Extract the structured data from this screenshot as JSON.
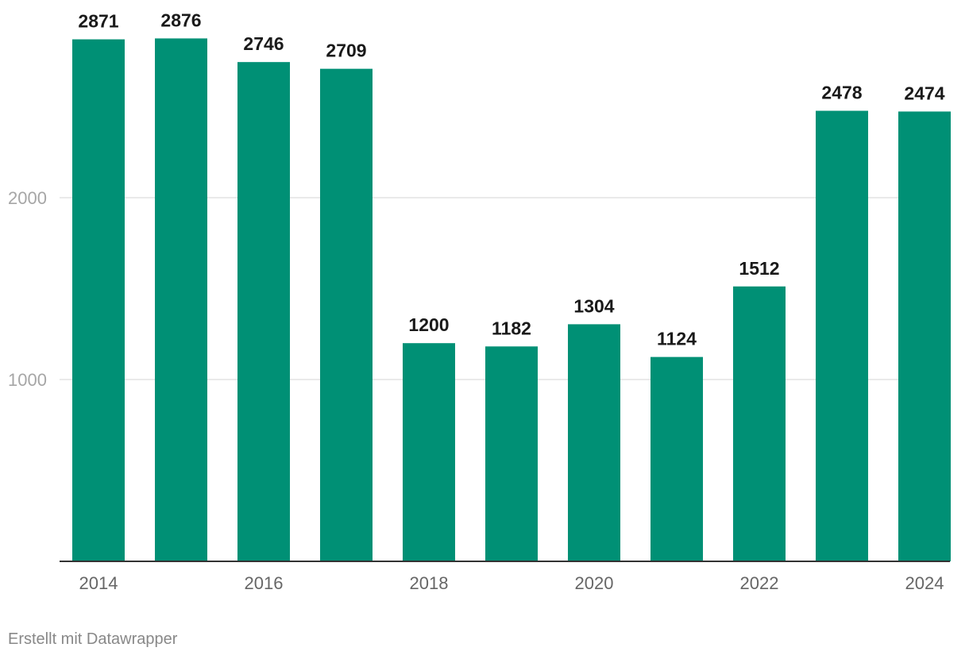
{
  "chart_data": {
    "type": "bar",
    "categories": [
      "2014",
      "2015",
      "2016",
      "2017",
      "2018",
      "2019",
      "2020",
      "2021",
      "2022",
      "2023",
      "2024"
    ],
    "values": [
      2871,
      2876,
      2746,
      2709,
      1200,
      1182,
      1304,
      1124,
      1512,
      2478,
      2474
    ],
    "x_tick_labels": [
      "2014",
      "2016",
      "2018",
      "2020",
      "2022",
      "2024"
    ],
    "y_ticks": [
      1000,
      2000
    ],
    "ylim": [
      0,
      2876
    ],
    "grid": true,
    "bar_color": "#009075",
    "title": "",
    "xlabel": "",
    "ylabel": ""
  },
  "footer": {
    "credit": "Erstellt mit Datawrapper"
  }
}
